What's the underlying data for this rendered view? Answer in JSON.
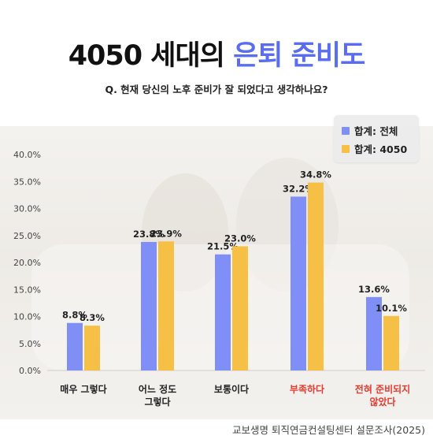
{
  "title": {
    "main": "4050 세대의 ",
    "accent": "은퇴 준비도"
  },
  "subtitle": "Q. 현재 당신의 노후 준비가 잘 되었다고 생각하나요?",
  "source": "교보생명 퇴직연금컨설팅센터 설문조사(2025)",
  "colors": {
    "series1": "#7f8ff5",
    "series2": "#f6bf45",
    "highlight_label": "#e63a2e",
    "accent": "#5a6cf0"
  },
  "chart_data": {
    "type": "bar",
    "categories": [
      [
        "매우 그렇다"
      ],
      [
        "어느 정도",
        "그렇다"
      ],
      [
        "보통이다"
      ],
      [
        "부족하다"
      ],
      [
        "전혀 준비되지",
        "않았다"
      ]
    ],
    "highlighted_categories": [
      3,
      4
    ],
    "series": [
      {
        "name": "합계: 전체",
        "values": [
          8.8,
          23.8,
          21.5,
          32.2,
          13.6
        ],
        "labels": [
          "8.8%",
          "23.8%",
          "21.5%",
          "32.2%",
          "13.6%"
        ]
      },
      {
        "name": "합계: 4050",
        "values": [
          8.3,
          23.9,
          23.0,
          34.8,
          10.1
        ],
        "labels": [
          "8.3%",
          "23.9%",
          "23.0%",
          "34.8%",
          "10.1%"
        ]
      }
    ],
    "yticks": [
      "0.0%",
      "5.0%",
      "10.0%",
      "15.0%",
      "20.0%",
      "25.0%",
      "30.0%",
      "35.0%",
      "40.0%"
    ],
    "ylim": [
      0,
      40
    ],
    "legend_position": "top-right",
    "grid": false
  }
}
